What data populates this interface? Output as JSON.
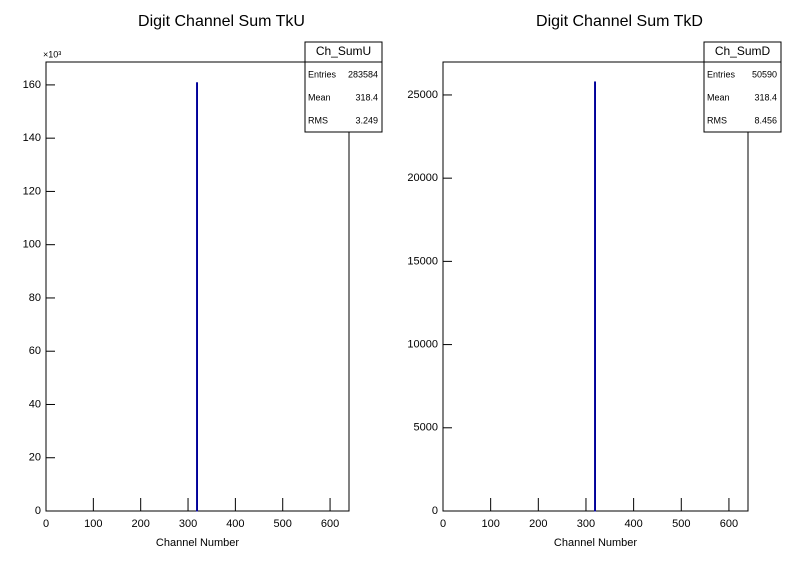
{
  "chart_data": [
    {
      "type": "histogram",
      "title": "Digit Channel Sum TkU",
      "xlabel": "Channel Number",
      "multiplier": "×10³",
      "bins": [
        0,
        318,
        320,
        640
      ],
      "values": [
        0,
        160.8,
        0
      ],
      "color": "#000099",
      "xlim": [
        0,
        640
      ],
      "xticks": [
        0,
        100,
        200,
        300,
        400,
        500,
        600
      ],
      "ylim": [
        0,
        168.6
      ],
      "yticks": [
        0,
        20,
        40,
        60,
        80,
        100,
        120,
        140,
        160
      ],
      "stats": {
        "name": "Ch_SumU",
        "rows": [
          {
            "label": "Entries",
            "value": 283584
          },
          {
            "label": "Mean",
            "value": 318.4
          },
          {
            "label": "RMS",
            "value": 3.249
          }
        ]
      }
    },
    {
      "type": "histogram",
      "title": "Digit Channel Sum TkD",
      "xlabel": "Channel Number",
      "bins": [
        0,
        318,
        320,
        640
      ],
      "values": [
        0,
        25780,
        0
      ],
      "color": "#000099",
      "xlim": [
        0,
        640
      ],
      "xticks": [
        0,
        100,
        200,
        300,
        400,
        500,
        600
      ],
      "ylim": [
        0,
        26980
      ],
      "yticks": [
        0,
        5000,
        10000,
        15000,
        20000,
        25000
      ],
      "stats": {
        "name": "Ch_SumD",
        "rows": [
          {
            "label": "Entries",
            "value": 50590
          },
          {
            "label": "Mean",
            "value": 318.4
          },
          {
            "label": "RMS",
            "value": 8.456
          }
        ]
      }
    }
  ]
}
